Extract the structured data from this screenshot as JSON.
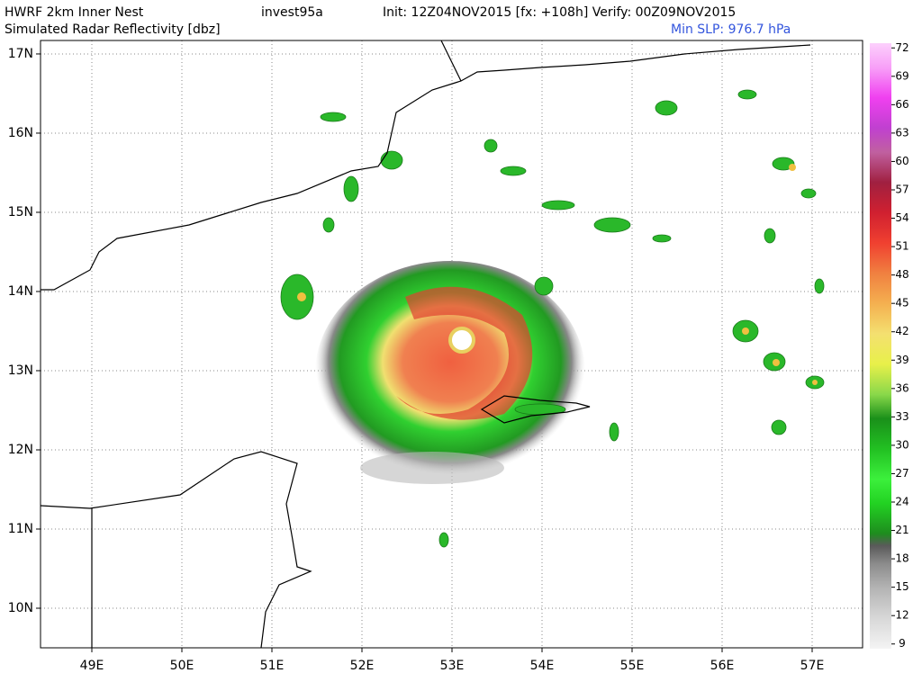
{
  "header": {
    "model": "HWRF 2km Inner Nest",
    "storm": "invest95a",
    "times": "Init: 12Z04NOV2015 [fx: +108h] Verify: 00Z09NOV2015",
    "field": "Simulated Radar Reflectivity [dbz]",
    "min_slp": "Min SLP: 976.7 hPa"
  },
  "map": {
    "xlim": [
      48.43,
      57.56
    ],
    "ylim": [
      9.5,
      17.17
    ],
    "xticks": [
      {
        "value": 49,
        "label": "49E"
      },
      {
        "value": 50,
        "label": "50E"
      },
      {
        "value": 51,
        "label": "51E"
      },
      {
        "value": 52,
        "label": "52E"
      },
      {
        "value": 53,
        "label": "53E"
      },
      {
        "value": 54,
        "label": "54E"
      },
      {
        "value": 55,
        "label": "55E"
      },
      {
        "value": 56,
        "label": "56E"
      },
      {
        "value": 57,
        "label": "57E"
      }
    ],
    "yticks": [
      {
        "value": 10,
        "label": "10N"
      },
      {
        "value": 11,
        "label": "11N"
      },
      {
        "value": 12,
        "label": "12N"
      },
      {
        "value": 13,
        "label": "13N"
      },
      {
        "value": 14,
        "label": "14N"
      },
      {
        "value": 15,
        "label": "15N"
      },
      {
        "value": 16,
        "label": "16N"
      },
      {
        "value": 17,
        "label": "17N"
      }
    ],
    "grid": true
  },
  "colorbar": {
    "lim": [
      8.5,
      72.5
    ],
    "ticks": [
      9,
      12,
      15,
      18,
      21,
      24,
      27,
      30,
      33,
      36,
      39,
      42,
      45,
      48,
      51,
      54,
      57,
      60,
      63,
      66,
      69,
      72
    ]
  }
}
